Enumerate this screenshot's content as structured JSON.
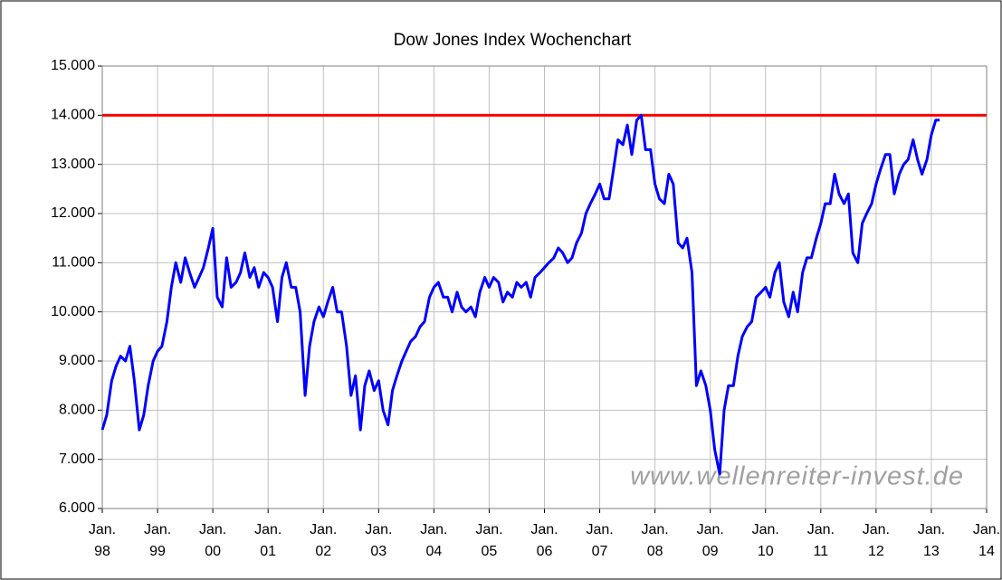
{
  "chart_data": {
    "type": "line",
    "title": "Dow Jones Index Wochenchart",
    "watermark": "www.wellenreiter-invest.de",
    "color": "#0000ff",
    "hline": {
      "value": 14000,
      "color": "#ff0000"
    },
    "grid": true,
    "xlim": [
      1998,
      2014
    ],
    "xticks": [
      {
        "value": 1998,
        "label": "Jan. 98"
      },
      {
        "value": 1999,
        "label": "Jan. 99"
      },
      {
        "value": 2000,
        "label": "Jan. 00"
      },
      {
        "value": 2001,
        "label": "Jan. 01"
      },
      {
        "value": 2002,
        "label": "Jan. 02"
      },
      {
        "value": 2003,
        "label": "Jan. 03"
      },
      {
        "value": 2004,
        "label": "Jan. 04"
      },
      {
        "value": 2005,
        "label": "Jan. 05"
      },
      {
        "value": 2006,
        "label": "Jan. 06"
      },
      {
        "value": 2007,
        "label": "Jan. 07"
      },
      {
        "value": 2008,
        "label": "Jan. 08"
      },
      {
        "value": 2009,
        "label": "Jan. 09"
      },
      {
        "value": 2010,
        "label": "Jan. 10"
      },
      {
        "value": 2011,
        "label": "Jan. 11"
      },
      {
        "value": 2012,
        "label": "Jan. 12"
      },
      {
        "value": 2013,
        "label": "Jan. 13"
      },
      {
        "value": 2014,
        "label": "Jan. 14"
      }
    ],
    "ylim": [
      6000,
      15000
    ],
    "yticks": [
      {
        "value": 6000,
        "label": "6.000"
      },
      {
        "value": 7000,
        "label": "7.000"
      },
      {
        "value": 8000,
        "label": "8.000"
      },
      {
        "value": 9000,
        "label": "9.000"
      },
      {
        "value": 10000,
        "label": "10.000"
      },
      {
        "value": 11000,
        "label": "11.000"
      },
      {
        "value": 12000,
        "label": "12.000"
      },
      {
        "value": 13000,
        "label": "13.000"
      },
      {
        "value": 14000,
        "label": "14.000"
      },
      {
        "value": 15000,
        "label": "15.000"
      }
    ],
    "x": [
      1998,
      1998.08,
      1998.17,
      1998.25,
      1998.33,
      1998.42,
      1998.5,
      1998.58,
      1998.67,
      1998.75,
      1998.83,
      1998.92,
      1999,
      1999.08,
      1999.17,
      1999.25,
      1999.33,
      1999.42,
      1999.5,
      1999.58,
      1999.67,
      1999.75,
      1999.83,
      1999.92,
      2000,
      2000.08,
      2000.17,
      2000.25,
      2000.33,
      2000.42,
      2000.5,
      2000.58,
      2000.67,
      2000.75,
      2000.83,
      2000.92,
      2001,
      2001.08,
      2001.17,
      2001.25,
      2001.33,
      2001.42,
      2001.5,
      2001.58,
      2001.67,
      2001.75,
      2001.83,
      2001.92,
      2002,
      2002.08,
      2002.17,
      2002.25,
      2002.33,
      2002.42,
      2002.5,
      2002.58,
      2002.67,
      2002.75,
      2002.83,
      2002.92,
      2003,
      2003.08,
      2003.17,
      2003.25,
      2003.33,
      2003.42,
      2003.5,
      2003.58,
      2003.67,
      2003.75,
      2003.83,
      2003.92,
      2004,
      2004.08,
      2004.17,
      2004.25,
      2004.33,
      2004.42,
      2004.5,
      2004.58,
      2004.67,
      2004.75,
      2004.83,
      2004.92,
      2005,
      2005.08,
      2005.17,
      2005.25,
      2005.33,
      2005.42,
      2005.5,
      2005.58,
      2005.67,
      2005.75,
      2005.83,
      2005.92,
      2006,
      2006.08,
      2006.17,
      2006.25,
      2006.33,
      2006.42,
      2006.5,
      2006.58,
      2006.67,
      2006.75,
      2006.83,
      2006.92,
      2007,
      2007.08,
      2007.17,
      2007.25,
      2007.33,
      2007.42,
      2007.5,
      2007.58,
      2007.67,
      2007.75,
      2007.83,
      2007.92,
      2008,
      2008.08,
      2008.17,
      2008.25,
      2008.33,
      2008.42,
      2008.5,
      2008.58,
      2008.67,
      2008.75,
      2008.83,
      2008.92,
      2009,
      2009.08,
      2009.17,
      2009.25,
      2009.33,
      2009.42,
      2009.5,
      2009.58,
      2009.67,
      2009.75,
      2009.83,
      2009.92,
      2010,
      2010.08,
      2010.17,
      2010.25,
      2010.33,
      2010.42,
      2010.5,
      2010.58,
      2010.67,
      2010.75,
      2010.83,
      2010.92,
      2011,
      2011.08,
      2011.17,
      2011.25,
      2011.33,
      2011.42,
      2011.5,
      2011.58,
      2011.67,
      2011.75,
      2011.83,
      2011.92,
      2012,
      2012.08,
      2012.17,
      2012.25,
      2012.33,
      2012.42,
      2012.5,
      2012.58,
      2012.67,
      2012.75,
      2012.83,
      2012.92,
      2013,
      2013.08,
      2013.15
    ],
    "values": [
      7600,
      7900,
      8600,
      8900,
      9100,
      9000,
      9300,
      8600,
      7600,
      7900,
      8500,
      9000,
      9200,
      9300,
      9800,
      10500,
      11000,
      10600,
      11100,
      10800,
      10500,
      10700,
      10900,
      11300,
      11700,
      10300,
      10100,
      11100,
      10500,
      10600,
      10800,
      11200,
      10700,
      10900,
      10500,
      10800,
      10700,
      10500,
      9800,
      10700,
      11000,
      10500,
      10500,
      10000,
      8300,
      9300,
      9800,
      10100,
      9900,
      10200,
      10500,
      10000,
      10000,
      9300,
      8300,
      8700,
      7600,
      8500,
      8800,
      8400,
      8600,
      8000,
      7700,
      8400,
      8700,
      9000,
      9200,
      9400,
      9500,
      9700,
      9800,
      10300,
      10500,
      10600,
      10300,
      10300,
      10000,
      10400,
      10100,
      10000,
      10100,
      9900,
      10400,
      10700,
      10500,
      10700,
      10600,
      10200,
      10400,
      10300,
      10600,
      10500,
      10600,
      10300,
      10700,
      10800,
      10900,
      11000,
      11100,
      11300,
      11200,
      11000,
      11100,
      11400,
      11600,
      12000,
      12200,
      12400,
      12600,
      12300,
      12300,
      12900,
      13500,
      13400,
      13800,
      13200,
      13900,
      14000,
      13300,
      13300,
      12600,
      12300,
      12200,
      12800,
      12600,
      11400,
      11300,
      11500,
      10800,
      8500,
      8800,
      8500,
      8000,
      7200,
      6700,
      8000,
      8500,
      8500,
      9100,
      9500,
      9700,
      9800,
      10300,
      10400,
      10500,
      10300,
      10800,
      11000,
      10200,
      9900,
      10400,
      10000,
      10800,
      11100,
      11100,
      11500,
      11800,
      12200,
      12200,
      12800,
      12400,
      12200,
      12400,
      11200,
      11000,
      11800,
      12000,
      12200,
      12600,
      12900,
      13200,
      13200,
      12400,
      12800,
      13000,
      13100,
      13500,
      13100,
      12800,
      13100,
      13600,
      13900,
      13900
    ]
  }
}
